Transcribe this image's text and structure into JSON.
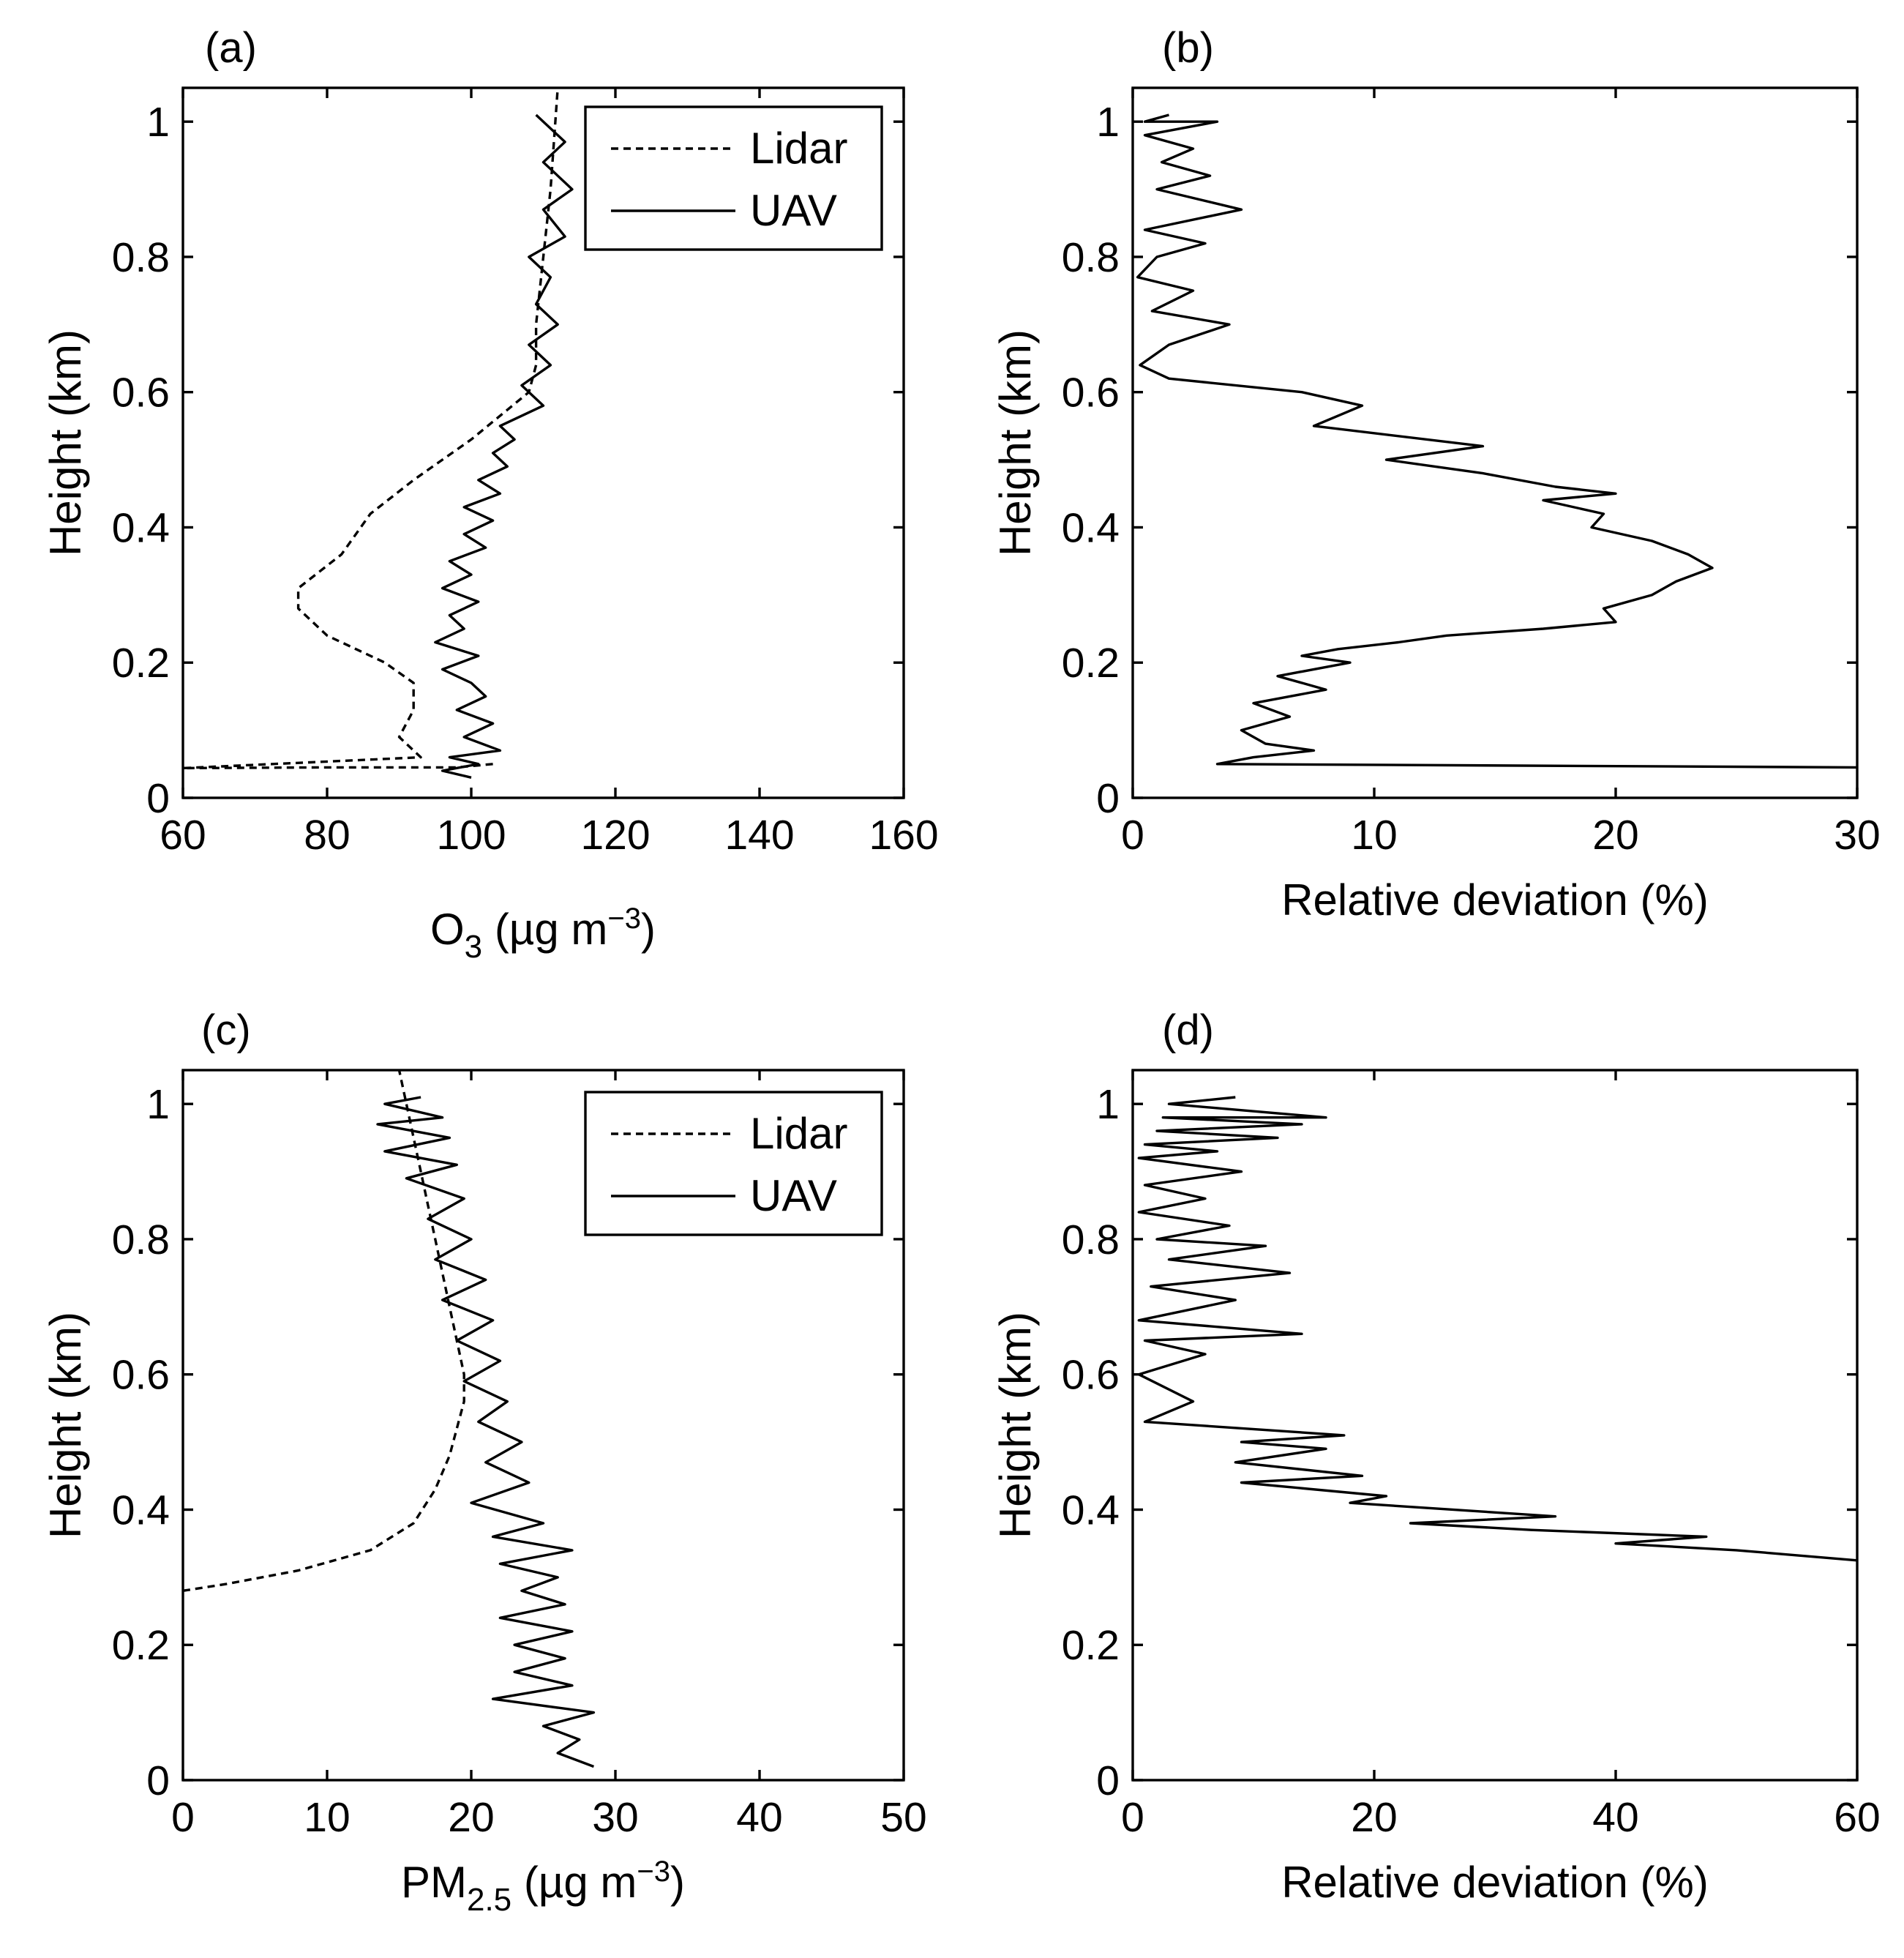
{
  "chart_data": [
    {
      "type": "line",
      "panel_label": "(a)",
      "xlabel_main": "O",
      "xlabel_sub": "3",
      "xlabel_rest": " (µg m",
      "xlabel_sup": "−3",
      "xlabel_close": ")",
      "ylabel": "Height (km)",
      "xlim": [
        60,
        160
      ],
      "ylim": [
        0,
        1.05
      ],
      "xticks": [
        "60",
        "80",
        "100",
        "120",
        "140",
        "160"
      ],
      "xtick_values": [
        60,
        80,
        100,
        120,
        140,
        160
      ],
      "yticks": [
        "0",
        "0.2",
        "0.4",
        "0.6",
        "0.8",
        "1"
      ],
      "ytick_values": [
        0,
        0.2,
        0.4,
        0.6,
        0.8,
        1.0
      ],
      "legend": {
        "location": "top-right",
        "entries": [
          "Lidar",
          "UAV"
        ]
      },
      "series": [
        {
          "name": "Lidar",
          "style": "dashed",
          "x": [
            103,
            98,
            80,
            60,
            60,
            93,
            90,
            92,
            92,
            88,
            80,
            76,
            76,
            82,
            86,
            92,
            100,
            108,
            109,
            109,
            110,
            111,
            112
          ],
          "y": [
            0.05,
            0.045,
            0.045,
            0.044,
            0.044,
            0.06,
            0.09,
            0.13,
            0.17,
            0.2,
            0.24,
            0.28,
            0.31,
            0.36,
            0.42,
            0.47,
            0.53,
            0.6,
            0.64,
            0.7,
            0.8,
            0.9,
            1.05
          ]
        },
        {
          "name": "UAV",
          "style": "solid",
          "x": [
            100,
            96,
            101,
            97,
            104,
            99,
            103,
            98,
            102,
            100,
            96,
            101,
            95,
            99,
            97,
            101,
            96,
            100,
            97,
            102,
            99,
            103,
            99,
            104,
            101,
            105,
            103,
            106,
            104,
            110,
            107,
            111,
            108,
            112,
            109,
            111,
            108,
            113,
            110,
            114,
            110,
            113,
            109
          ],
          "y": [
            0.03,
            0.04,
            0.05,
            0.06,
            0.07,
            0.09,
            0.11,
            0.13,
            0.15,
            0.17,
            0.19,
            0.21,
            0.23,
            0.25,
            0.27,
            0.29,
            0.31,
            0.33,
            0.35,
            0.37,
            0.39,
            0.41,
            0.43,
            0.45,
            0.47,
            0.49,
            0.51,
            0.53,
            0.55,
            0.58,
            0.61,
            0.64,
            0.67,
            0.7,
            0.73,
            0.77,
            0.8,
            0.83,
            0.87,
            0.9,
            0.94,
            0.97,
            1.01
          ]
        }
      ]
    },
    {
      "type": "line",
      "panel_label": "(b)",
      "xlabel": "Relative deviation (%)",
      "ylabel": "Height (km)",
      "xlim": [
        0,
        30
      ],
      "ylim": [
        0,
        1.05
      ],
      "xticks": [
        "0",
        "10",
        "20",
        "30"
      ],
      "xtick_values": [
        0,
        10,
        20,
        30
      ],
      "yticks": [
        "0",
        "0.2",
        "0.4",
        "0.6",
        "0.8",
        "1"
      ],
      "ytick_values": [
        0,
        0.2,
        0.4,
        0.6,
        0.8,
        1.0
      ],
      "series": [
        {
          "name": "Relative deviation",
          "style": "solid",
          "x": [
            30,
            3.5,
            5,
            7.5,
            5.5,
            4.5,
            6.5,
            5,
            8,
            6,
            9,
            7,
            8.5,
            11,
            13,
            17,
            20,
            19.5,
            21.5,
            22.5,
            24,
            23,
            21.5,
            19,
            19.5,
            17,
            20,
            17.5,
            14.5,
            10.5,
            14.5,
            7.5,
            9.5,
            7,
            1.5,
            0.3,
            1.5,
            4,
            0.8,
            2.5,
            0.2,
            1,
            3,
            0.5,
            4.5,
            1,
            3.2,
            1.2,
            2.5,
            0.5,
            3.5,
            0.5,
            1.5
          ],
          "y": [
            0.045,
            0.05,
            0.06,
            0.07,
            0.08,
            0.1,
            0.12,
            0.14,
            0.16,
            0.18,
            0.2,
            0.21,
            0.22,
            0.23,
            0.24,
            0.25,
            0.26,
            0.28,
            0.3,
            0.32,
            0.34,
            0.36,
            0.38,
            0.4,
            0.42,
            0.44,
            0.45,
            0.46,
            0.48,
            0.5,
            0.52,
            0.55,
            0.58,
            0.6,
            0.62,
            0.64,
            0.67,
            0.7,
            0.72,
            0.75,
            0.77,
            0.8,
            0.82,
            0.84,
            0.87,
            0.9,
            0.92,
            0.94,
            0.96,
            0.98,
            1.0,
            1.0,
            1.01
          ]
        }
      ]
    },
    {
      "type": "line",
      "panel_label": "(c)",
      "xlabel_main": "PM",
      "xlabel_sub": "2.5",
      "xlabel_rest": " (µg m",
      "xlabel_sup": "−3",
      "xlabel_close": ")",
      "ylabel": "Height (km)",
      "xlim": [
        0,
        50
      ],
      "ylim": [
        0,
        1.05
      ],
      "xticks": [
        "0",
        "10",
        "20",
        "30",
        "40",
        "50"
      ],
      "xtick_values": [
        0,
        10,
        20,
        30,
        40,
        50
      ],
      "yticks": [
        "0",
        "0.2",
        "0.4",
        "0.6",
        "0.8",
        "1"
      ],
      "ytick_values": [
        0,
        0.2,
        0.4,
        0.6,
        0.8,
        1.0
      ],
      "legend": {
        "location": "top-right",
        "entries": [
          "Lidar",
          "UAV"
        ]
      },
      "series": [
        {
          "name": "Lidar",
          "style": "dashed",
          "x": [
            0,
            3,
            8,
            13,
            16,
            17.5,
            18.5,
            19,
            19.5,
            19.5,
            19,
            18.5,
            18,
            17.5,
            17,
            16.5,
            16,
            15.5,
            15
          ],
          "y": [
            0.28,
            0.29,
            0.31,
            0.34,
            0.38,
            0.43,
            0.48,
            0.52,
            0.56,
            0.6,
            0.65,
            0.7,
            0.75,
            0.8,
            0.85,
            0.9,
            0.95,
            1.0,
            1.05
          ]
        },
        {
          "name": "UAV",
          "style": "solid",
          "x": [
            28.5,
            26,
            27.5,
            25,
            28.5,
            21.5,
            27,
            23,
            26.5,
            23,
            27,
            22,
            26.5,
            23.5,
            26,
            22,
            27,
            21.5,
            25,
            20,
            24,
            21,
            23.5,
            20.5,
            22.5,
            19.5,
            22,
            19,
            21.5,
            18,
            21,
            17.5,
            20,
            17,
            19.5,
            15.5,
            19,
            14,
            18.5,
            13.5,
            18,
            14,
            16.5
          ],
          "y": [
            0.02,
            0.04,
            0.06,
            0.08,
            0.1,
            0.12,
            0.14,
            0.16,
            0.18,
            0.2,
            0.22,
            0.24,
            0.26,
            0.28,
            0.3,
            0.32,
            0.34,
            0.36,
            0.38,
            0.41,
            0.44,
            0.47,
            0.5,
            0.53,
            0.56,
            0.59,
            0.62,
            0.65,
            0.68,
            0.71,
            0.74,
            0.77,
            0.8,
            0.83,
            0.86,
            0.89,
            0.91,
            0.93,
            0.95,
            0.97,
            0.98,
            1.0,
            1.01
          ]
        }
      ]
    },
    {
      "type": "line",
      "panel_label": "(d)",
      "xlabel": "Relative deviation (%)",
      "ylabel": "Height (km)",
      "xlim": [
        0,
        60
      ],
      "ylim": [
        0,
        1.05
      ],
      "xticks": [
        "0",
        "20",
        "40",
        "60"
      ],
      "xtick_values": [
        0,
        20,
        40,
        60
      ],
      "yticks": [
        "0",
        "0.2",
        "0.4",
        "0.6",
        "0.8",
        "1"
      ],
      "ytick_values": [
        0,
        0.2,
        0.4,
        0.6,
        0.8,
        1.0
      ],
      "series": [
        {
          "name": "Relative deviation",
          "style": "solid",
          "x": [
            60,
            50,
            40,
            47.5,
            33,
            23,
            35,
            18,
            21,
            9,
            19,
            8.5,
            16,
            9,
            17.5,
            1,
            5,
            0.5,
            6,
            1,
            14,
            0.5,
            8.5,
            1.5,
            13,
            3,
            11,
            2,
            8,
            0.5,
            6,
            1,
            9,
            0.5,
            7,
            1,
            12,
            2,
            14,
            2.5,
            16,
            3,
            8.5
          ],
          "y": [
            0.325,
            0.34,
            0.35,
            0.36,
            0.37,
            0.38,
            0.39,
            0.41,
            0.42,
            0.44,
            0.45,
            0.47,
            0.49,
            0.5,
            0.51,
            0.53,
            0.56,
            0.6,
            0.63,
            0.65,
            0.66,
            0.68,
            0.71,
            0.73,
            0.75,
            0.77,
            0.79,
            0.8,
            0.82,
            0.84,
            0.86,
            0.88,
            0.9,
            0.92,
            0.93,
            0.94,
            0.95,
            0.96,
            0.97,
            0.98,
            0.98,
            1.0,
            1.01
          ]
        }
      ]
    }
  ]
}
